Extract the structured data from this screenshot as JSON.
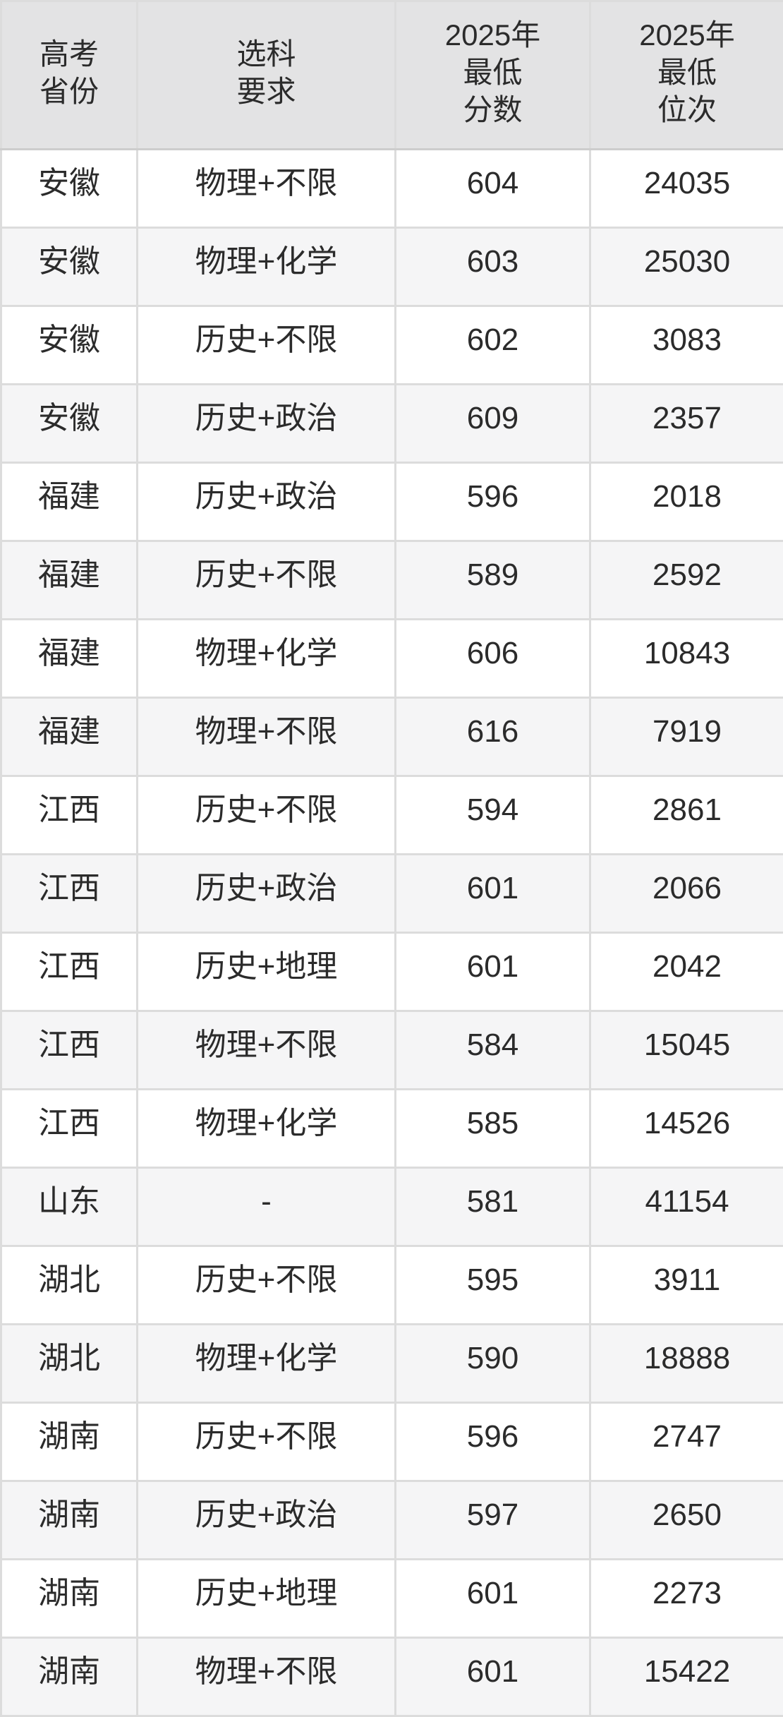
{
  "table": {
    "headers": {
      "province": "高考\n省份",
      "requirement": "选科\n要求",
      "score": "2025年\n最低\n分数",
      "rank": "2025年\n最低\n位次"
    },
    "rows": [
      {
        "province": "安徽",
        "requirement": "物理+不限",
        "score": "604",
        "rank": "24035"
      },
      {
        "province": "安徽",
        "requirement": "物理+化学",
        "score": "603",
        "rank": "25030"
      },
      {
        "province": "安徽",
        "requirement": "历史+不限",
        "score": "602",
        "rank": "3083"
      },
      {
        "province": "安徽",
        "requirement": "历史+政治",
        "score": "609",
        "rank": "2357"
      },
      {
        "province": "福建",
        "requirement": "历史+政治",
        "score": "596",
        "rank": "2018"
      },
      {
        "province": "福建",
        "requirement": "历史+不限",
        "score": "589",
        "rank": "2592"
      },
      {
        "province": "福建",
        "requirement": "物理+化学",
        "score": "606",
        "rank": "10843"
      },
      {
        "province": "福建",
        "requirement": "物理+不限",
        "score": "616",
        "rank": "7919"
      },
      {
        "province": "江西",
        "requirement": "历史+不限",
        "score": "594",
        "rank": "2861"
      },
      {
        "province": "江西",
        "requirement": "历史+政治",
        "score": "601",
        "rank": "2066"
      },
      {
        "province": "江西",
        "requirement": "历史+地理",
        "score": "601",
        "rank": "2042"
      },
      {
        "province": "江西",
        "requirement": "物理+不限",
        "score": "584",
        "rank": "15045"
      },
      {
        "province": "江西",
        "requirement": "物理+化学",
        "score": "585",
        "rank": "14526"
      },
      {
        "province": "山东",
        "requirement": "-",
        "score": "581",
        "rank": "41154"
      },
      {
        "province": "湖北",
        "requirement": "历史+不限",
        "score": "595",
        "rank": "3911"
      },
      {
        "province": "湖北",
        "requirement": "物理+化学",
        "score": "590",
        "rank": "18888"
      },
      {
        "province": "湖南",
        "requirement": "历史+不限",
        "score": "596",
        "rank": "2747"
      },
      {
        "province": "湖南",
        "requirement": "历史+政治",
        "score": "597",
        "rank": "2650"
      },
      {
        "province": "湖南",
        "requirement": "历史+地理",
        "score": "601",
        "rank": "2273"
      },
      {
        "province": "湖南",
        "requirement": "物理+不限",
        "score": "601",
        "rank": "15422"
      }
    ]
  },
  "colors": {
    "header_bg": "#e3e3e4",
    "row_alt_bg": "#f5f5f6",
    "row_bg": "#ffffff",
    "border": "#dcdcdc",
    "text": "#2b2b2b"
  }
}
